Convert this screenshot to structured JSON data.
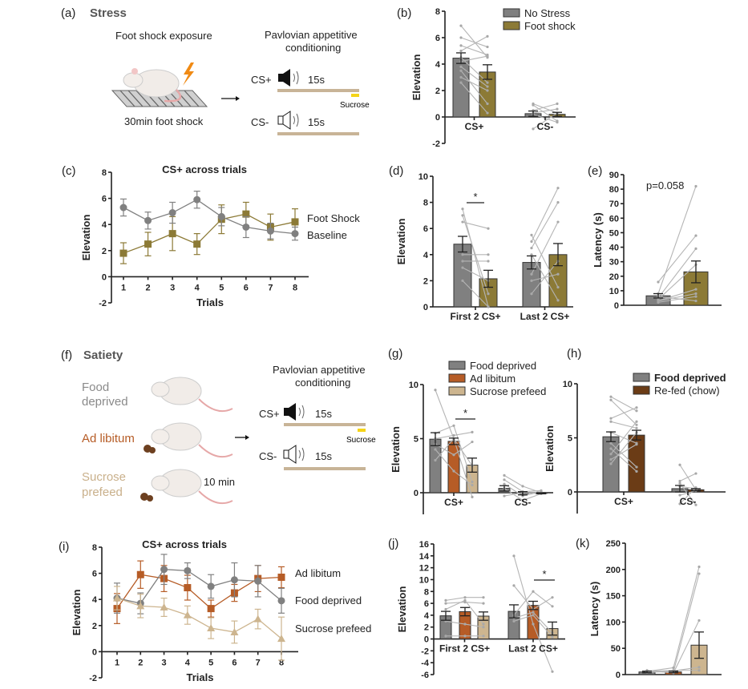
{
  "colors": {
    "no_stress": "#808080",
    "foot_shock": "#8c7a36",
    "food_deprived": "#808080",
    "ad_libitum": "#b65c26",
    "sucrose_prefeed": "#cdb58f",
    "refed": "#6b3c16",
    "individual": "#b5b5b5",
    "timeline_bar": "#c8b497",
    "sucrose_mark": "#f5d418"
  },
  "illustration_a": {
    "panel_label": "(a)",
    "title": "Stress",
    "left_caption": "Foot shock exposure",
    "bottom_caption": "30min foot shock",
    "right_caption_1": "Pavlovian appetitive",
    "right_caption_2": "conditioning",
    "cs_plus": "CS+",
    "cs_minus": "CS-",
    "duration_plus": "15s",
    "duration_minus": "15s",
    "sucrose": "Sucrose",
    "icons": [
      "rat-icon",
      "lightning-icon",
      "shock-grid-icon",
      "arrow-right-icon",
      "speaker-filled-icon",
      "speaker-outline-icon"
    ]
  },
  "illustration_f": {
    "panel_label": "(f)",
    "title": "Satiety",
    "group1_line1": "Food",
    "group1_line2": "deprived",
    "group2": "Ad libitum",
    "group3_line1": "Sucrose",
    "group3_line2": "prefeed",
    "time": "10 min",
    "right_caption_1": "Pavlovian appetitive",
    "right_caption_2": "conditioning",
    "cs_plus": "CS+",
    "cs_minus": "CS-",
    "duration_plus": "15s",
    "duration_minus": "15s",
    "sucrose": "Sucrose",
    "group_colors": [
      "#8a8a8a",
      "#b65c26",
      "#c9b08b"
    ]
  },
  "chart_data": [
    {
      "id": "b",
      "panel_label": "(b)",
      "type": "bar",
      "ylabel": "Elevation",
      "ylim": [
        -2,
        8
      ],
      "yticks": [
        -2,
        0,
        2,
        4,
        6,
        8
      ],
      "legend": [
        "No Stress",
        "Foot shock"
      ],
      "legend_placement": "top-right",
      "series_colors": [
        "no_stress",
        "foot_shock"
      ],
      "groups": [
        {
          "label": "CS+",
          "means": [
            4.45,
            3.4
          ],
          "sem": [
            0.4,
            0.55
          ],
          "individual": [
            [
              6.9,
              4.5
            ],
            [
              6.0,
              5.3
            ],
            [
              5.4,
              4.7
            ],
            [
              5.0,
              6.1
            ],
            [
              4.5,
              2.6
            ],
            [
              3.8,
              2.3
            ],
            [
              3.5,
              1.0
            ],
            [
              3.0,
              2.0
            ],
            [
              2.6,
              0.3
            ],
            [
              4.2,
              4.6
            ]
          ]
        },
        {
          "label": "CS-",
          "means": [
            0.25,
            0.2
          ],
          "sem": [
            0.2,
            0.15
          ],
          "individual": [
            [
              1.0,
              0.3
            ],
            [
              0.9,
              -0.3
            ],
            [
              0.5,
              1.0
            ],
            [
              0.3,
              0.6
            ],
            [
              -0.9,
              0.3
            ],
            [
              0.2,
              -0.4
            ]
          ]
        }
      ]
    },
    {
      "id": "c",
      "panel_label": "(c)",
      "type": "line",
      "title": "CS+ across trials",
      "xlabel": "Trials",
      "ylabel": "Elevation",
      "ylim": [
        -2,
        8
      ],
      "yticks": [
        -2,
        0,
        2,
        4,
        6,
        8
      ],
      "x": [
        1,
        2,
        3,
        4,
        5,
        6,
        7,
        8
      ],
      "series": [
        {
          "name": "Foot Shock",
          "color": "foot_shock",
          "marker": "square",
          "values": [
            1.8,
            2.5,
            3.3,
            2.5,
            4.4,
            4.8,
            3.8,
            4.2
          ],
          "sem": [
            0.8,
            0.9,
            1.3,
            0.8,
            1.1,
            0.9,
            1.0,
            1.0
          ]
        },
        {
          "name": "Baseline",
          "color": "no_stress",
          "marker": "circle",
          "values": [
            5.3,
            4.3,
            4.9,
            5.9,
            4.6,
            3.8,
            3.5,
            3.3
          ],
          "sem": [
            0.65,
            0.65,
            0.8,
            0.65,
            0.7,
            0.8,
            0.6,
            0.5
          ]
        }
      ]
    },
    {
      "id": "d",
      "panel_label": "(d)",
      "type": "bar",
      "ylabel": "Elevation",
      "ylim": [
        0,
        10
      ],
      "yticks": [
        0,
        2,
        4,
        6,
        8,
        10
      ],
      "series_colors": [
        "no_stress",
        "foot_shock"
      ],
      "annotation": "*",
      "groups": [
        {
          "label": "First 2 CS+",
          "means": [
            4.8,
            2.15
          ],
          "sem": [
            0.6,
            0.65
          ],
          "individual": [
            [
              7.5,
              0
            ],
            [
              7.0,
              1.0
            ],
            [
              6.5,
              6.0
            ],
            [
              4.0,
              4.0
            ],
            [
              3.5,
              3.5
            ],
            [
              3.0,
              2.0
            ],
            [
              2.0,
              0
            ]
          ]
        },
        {
          "label": "Last 2 CS+",
          "means": [
            3.4,
            4.0
          ],
          "sem": [
            0.5,
            0.85
          ],
          "individual": [
            [
              5.5,
              1.5
            ],
            [
              5.0,
              9.1
            ],
            [
              4.5,
              8.0
            ],
            [
              4.0,
              0.5
            ],
            [
              2.5,
              6.5
            ],
            [
              2.0,
              2.5
            ],
            [
              1.0,
              3.5
            ]
          ]
        }
      ]
    },
    {
      "id": "e",
      "panel_label": "(e)",
      "type": "bar",
      "ylabel": "Latency (s)",
      "ylim": [
        0,
        90
      ],
      "yticks": [
        0,
        10,
        20,
        30,
        40,
        50,
        60,
        70,
        80,
        90
      ],
      "series_colors": [
        "no_stress",
        "foot_shock"
      ],
      "annotation": "p=0.058",
      "groups": [
        {
          "label": "",
          "means": [
            6.5,
            23
          ],
          "sem": [
            1.5,
            7.5
          ],
          "individual": [
            [
              16,
              48
            ],
            [
              8,
              82
            ],
            [
              5,
              39
            ],
            [
              4,
              28
            ],
            [
              3,
              11
            ],
            [
              3,
              8
            ],
            [
              2,
              6
            ],
            [
              6,
              3
            ]
          ]
        }
      ]
    },
    {
      "id": "g",
      "panel_label": "(g)",
      "type": "bar",
      "ylabel": "Elevation",
      "ylim": [
        -2,
        10
      ],
      "yticks": [
        0,
        5,
        10
      ],
      "legend": [
        "Food deprived",
        "Ad libitum",
        "Sucrose prefeed"
      ],
      "legend_placement": "top",
      "series_colors": [
        "food_deprived",
        "ad_libitum",
        "sucrose_prefeed"
      ],
      "annotation": "*",
      "groups": [
        {
          "label": "CS+",
          "means": [
            4.95,
            4.75,
            2.55
          ],
          "sem": [
            0.6,
            0.3,
            0.65
          ],
          "individual": [
            [
              9.5,
              5.0,
              -0.4
            ],
            [
              5.5,
              6.2,
              1.0
            ],
            [
              5.0,
              5.3,
              5.6
            ],
            [
              4.5,
              3.5,
              4.7
            ],
            [
              4.0,
              2.0,
              0.7
            ],
            [
              3.0,
              5.0,
              2.5
            ]
          ]
        },
        {
          "label": "CS-",
          "means": [
            0.4,
            -0.05,
            -0.05
          ],
          "sem": [
            0.25,
            0.15,
            0.05
          ],
          "individual": [
            [
              1.6,
              0.6,
              0.0
            ],
            [
              1.2,
              0.1,
              0.2
            ],
            [
              0.8,
              -0.3,
              0.1
            ],
            [
              0.4,
              -0.7,
              -0.1
            ],
            [
              -0.3,
              0.0,
              0.0
            ]
          ]
        }
      ]
    },
    {
      "id": "h",
      "panel_label": "(h)",
      "type": "bar",
      "ylabel": "Elevation",
      "ylim": [
        -2,
        10
      ],
      "yticks": [
        0,
        5,
        10
      ],
      "legend": [
        "Food deprived",
        "Re-fed (chow)"
      ],
      "legend_placement": "top-right",
      "series_colors": [
        "food_deprived",
        "refed"
      ],
      "groups": [
        {
          "label": "CS+",
          "means": [
            5.1,
            5.25
          ],
          "sem": [
            0.45,
            0.45
          ],
          "individual": [
            [
              8.8,
              7.5
            ],
            [
              8.5,
              6.2
            ],
            [
              6.8,
              7.8
            ],
            [
              6.5,
              5.9
            ],
            [
              5.5,
              4.5
            ],
            [
              4.5,
              2.3
            ],
            [
              4.0,
              1.9
            ],
            [
              3.5,
              6.5
            ],
            [
              3.0,
              4.4
            ],
            [
              2.6,
              5.5
            ]
          ]
        },
        {
          "label": "CS-",
          "means": [
            0.3,
            0.2
          ],
          "sem": [
            0.3,
            0.1
          ],
          "individual": [
            [
              2.5,
              0.2
            ],
            [
              1.0,
              1.7
            ],
            [
              0.8,
              -1.2
            ],
            [
              0.5,
              0.3
            ],
            [
              -0.3,
              0.1
            ],
            [
              -1.1,
              0.4
            ]
          ]
        }
      ]
    },
    {
      "id": "i",
      "panel_label": "(i)",
      "type": "line",
      "title": "CS+ across trials",
      "xlabel": "Trials",
      "ylabel": "Elevation",
      "ylim": [
        -2,
        8
      ],
      "yticks": [
        -2,
        0,
        2,
        4,
        6,
        8
      ],
      "x": [
        1,
        2,
        3,
        4,
        5,
        6,
        7,
        8
      ],
      "series": [
        {
          "name": "Ad libitum",
          "color": "ad_libitum",
          "marker": "square",
          "values": [
            3.3,
            5.9,
            5.6,
            4.9,
            3.3,
            4.5,
            5.6,
            5.7
          ],
          "sem": [
            1.15,
            1.05,
            1.0,
            0.95,
            0.65,
            0.65,
            1.0,
            0.8
          ]
        },
        {
          "name": "Food deprived",
          "color": "food_deprived",
          "marker": "circle",
          "values": [
            4.1,
            3.7,
            6.3,
            6.2,
            5.0,
            5.5,
            5.4,
            3.9
          ],
          "sem": [
            1.15,
            0.8,
            1.15,
            0.6,
            0.9,
            1.3,
            1.2,
            0.95
          ]
        },
        {
          "name": "Sucrose prefeed",
          "color": "sucrose_prefeed",
          "marker": "triangle",
          "values": [
            4.1,
            3.5,
            3.4,
            2.8,
            1.8,
            1.5,
            2.5,
            1.0
          ],
          "sem": [
            0.9,
            0.9,
            0.7,
            0.7,
            0.8,
            0.85,
            0.75,
            1.65
          ]
        }
      ]
    },
    {
      "id": "j",
      "panel_label": "(j)",
      "type": "bar",
      "ylabel": "Elevation",
      "ylim": [
        -6,
        16
      ],
      "yticks": [
        -6,
        -4,
        -2,
        0,
        2,
        4,
        6,
        8,
        10,
        12,
        14,
        16
      ],
      "series_colors": [
        "food_deprived",
        "ad_libitum",
        "sucrose_prefeed"
      ],
      "annotation": "*",
      "groups": [
        {
          "label": "First 2 CS+",
          "means": [
            3.9,
            4.6,
            3.85
          ],
          "sem": [
            0.75,
            0.7,
            0.7
          ],
          "individual": [
            [
              6.5,
              7.0,
              7.0
            ],
            [
              6.0,
              6.2,
              6.0
            ],
            [
              5.0,
              6.5,
              2.5
            ],
            [
              3.0,
              2.5,
              2.0
            ],
            [
              0.5,
              0.5,
              0.5
            ]
          ]
        },
        {
          "label": "Last 2 CS+",
          "means": [
            4.65,
            5.65,
            1.75
          ],
          "sem": [
            1.1,
            0.7,
            1.1
          ],
          "individual": [
            [
              14,
              2.5,
              -5.5
            ],
            [
              9.0,
              5.0,
              7.0
            ],
            [
              4.0,
              8.0,
              5.5
            ],
            [
              3.5,
              4.5,
              1.0
            ],
            [
              3.0,
              4.0,
              0.3
            ]
          ]
        }
      ]
    },
    {
      "id": "k",
      "panel_label": "(k)",
      "type": "bar",
      "ylabel": "Latency (s)",
      "ylim": [
        0,
        250
      ],
      "yticks": [
        0,
        50,
        100,
        150,
        200,
        250
      ],
      "series_colors": [
        "food_deprived",
        "ad_libitum",
        "sucrose_prefeed"
      ],
      "groups": [
        {
          "label": "",
          "means": [
            5,
            5,
            56
          ],
          "sem": [
            1.5,
            1.5,
            25
          ],
          "individual": [
            [
              6,
              13,
              205
            ],
            [
              5,
              5,
              192
            ],
            [
              8,
              3,
              103
            ],
            [
              4,
              7,
              14
            ],
            [
              6,
              8,
              8
            ]
          ]
        }
      ]
    }
  ]
}
